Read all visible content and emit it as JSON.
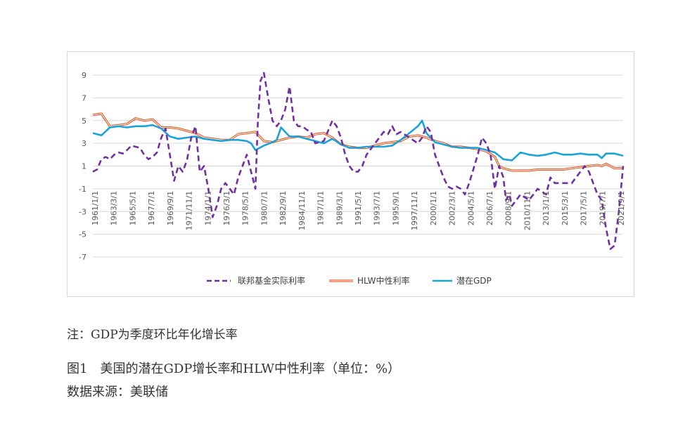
{
  "chart_data": {
    "type": "line",
    "title": "",
    "xlabel": "",
    "ylabel": "",
    "ylim": [
      -7,
      9
    ],
    "y_ticks": [
      "9",
      "7",
      "5",
      "3",
      "1",
      "-1",
      "-3",
      "-5",
      "-7"
    ],
    "x_tick_labels": [
      "1961/1/1",
      "1963/3/1",
      "1965/5/1",
      "1967/7/1",
      "1969/9/1",
      "1971/11/1",
      "1974/1/1",
      "1976/3/1",
      "1978/5/1",
      "1980/7/1",
      "1982/9/1",
      "1984/11/1",
      "1987/1/1",
      "1989/3/1",
      "1991/5/1",
      "1993/7/1",
      "1995/9/1",
      "1997/11/1",
      "2000/1/1",
      "2002/3/1",
      "2004/5/1",
      "2006/7/1",
      "2008/9/1",
      "2010/11/1",
      "2013/1/1",
      "2015/3/1",
      "2017/5/1",
      "2019/7/1",
      "2021/9/1"
    ],
    "x_range": [
      1961.0,
      2023.0
    ],
    "legend_position": "bottom",
    "series": [
      {
        "name": "联邦基金实际利率",
        "color": "#7030a0",
        "style": "dashed",
        "x": [
          1961.0,
          1961.5,
          1962.0,
          1962.5,
          1963.0,
          1963.5,
          1964.0,
          1964.5,
          1965.0,
          1965.5,
          1966.0,
          1966.5,
          1967.0,
          1967.5,
          1968.0,
          1968.5,
          1969.0,
          1969.5,
          1970.0,
          1970.5,
          1971.0,
          1971.5,
          1972.0,
          1972.5,
          1973.0,
          1973.5,
          1974.0,
          1974.5,
          1975.0,
          1975.5,
          1976.0,
          1976.5,
          1977.0,
          1977.5,
          1978.0,
          1978.5,
          1979.0,
          1979.5,
          1980.0,
          1980.3,
          1980.6,
          1981.0,
          1981.5,
          1982.0,
          1982.5,
          1983.0,
          1983.5,
          1984.0,
          1984.5,
          1985.0,
          1985.5,
          1986.0,
          1986.5,
          1987.0,
          1988.0,
          1989.0,
          1989.5,
          1990.0,
          1990.5,
          1991.0,
          1991.5,
          1992.0,
          1992.5,
          1993.0,
          1994.0,
          1995.0,
          1995.5,
          1996.0,
          1996.5,
          1997.0,
          1998.0,
          1999.0,
          1999.5,
          2000.0,
          2000.5,
          2001.0,
          2001.5,
          2002.0,
          2002.5,
          2003.0,
          2003.5,
          2004.0,
          2004.5,
          2005.0,
          2006.0,
          2006.5,
          2007.0,
          2007.5,
          2008.0,
          2008.5,
          2009.0,
          2009.3,
          2009.7,
          2010.0,
          2011.0,
          2012.0,
          2013.0,
          2014.0,
          2014.5,
          2015.0,
          2016.0,
          2017.0,
          2017.5,
          2018.0,
          2018.5,
          2019.0,
          2019.5,
          2020.0,
          2020.5,
          2021.0,
          2021.5,
          2022.0,
          2022.5,
          2023.0
        ],
        "values": [
          0.5,
          0.7,
          1.6,
          1.8,
          1.6,
          2.0,
          2.2,
          2.1,
          2.4,
          2.8,
          2.7,
          2.6,
          2.0,
          1.6,
          1.8,
          2.2,
          3.5,
          4.3,
          2.0,
          -0.3,
          1.0,
          0.5,
          1.5,
          3.5,
          4.5,
          0.5,
          1.0,
          -1.0,
          -3.5,
          -2.5,
          -1.0,
          -0.5,
          -1.0,
          -1.5,
          0.0,
          1.0,
          2.0,
          0.5,
          -1.0,
          5.0,
          8.5,
          9.2,
          7.0,
          5.0,
          4.5,
          5.0,
          6.0,
          8.0,
          5.0,
          4.5,
          4.5,
          4.2,
          4.0,
          3.0,
          3.2,
          5.0,
          4.5,
          3.5,
          2.0,
          1.0,
          0.5,
          0.5,
          1.0,
          2.0,
          3.0,
          4.0,
          3.8,
          4.5,
          3.8,
          4.0,
          3.5,
          3.0,
          3.5,
          4.5,
          4.0,
          2.0,
          1.0,
          0.0,
          -0.8,
          -1.0,
          -0.8,
          -1.0,
          -1.5,
          -0.5,
          2.0,
          3.5,
          3.0,
          2.0,
          -1.0,
          1.0,
          0.0,
          -2.0,
          -1.5,
          -2.5,
          -1.5,
          -2.0,
          -1.0,
          -1.5,
          0.0,
          -0.5,
          -0.5,
          -0.5,
          0.0,
          0.5,
          1.0,
          0.5,
          -0.5,
          -1.5,
          -2.0,
          -4.5,
          -6.3,
          -6.0,
          -3.0,
          1.0
        ]
      },
      {
        "name": "HLW中性利率",
        "color": "#e8561c",
        "style": "double",
        "x": [
          1961.0,
          1962.0,
          1963.0,
          1964.0,
          1965.0,
          1966.0,
          1967.0,
          1968.0,
          1969.0,
          1970.0,
          1971.0,
          1972.0,
          1973.0,
          1974.0,
          1975.0,
          1976.0,
          1977.0,
          1978.0,
          1979.0,
          1980.0,
          1981.0,
          1982.0,
          1983.0,
          1984.0,
          1985.0,
          1986.0,
          1987.0,
          1988.0,
          1989.0,
          1990.0,
          1991.0,
          1992.0,
          1993.0,
          1994.0,
          1995.0,
          1996.0,
          1997.0,
          1998.0,
          1999.0,
          2000.0,
          2001.0,
          2002.0,
          2003.0,
          2004.0,
          2005.0,
          2006.0,
          2007.0,
          2008.0,
          2008.5,
          2009.0,
          2010.0,
          2011.0,
          2012.0,
          2013.0,
          2014.0,
          2015.0,
          2016.0,
          2017.0,
          2018.0,
          2019.0,
          2020.0,
          2020.5,
          2021.0,
          2022.0,
          2023.0
        ],
        "values": [
          5.5,
          5.6,
          4.5,
          4.6,
          4.7,
          5.2,
          5.0,
          5.1,
          4.4,
          4.4,
          4.3,
          4.1,
          3.9,
          3.5,
          3.4,
          3.3,
          3.3,
          3.8,
          3.9,
          4.0,
          3.2,
          3.1,
          3.3,
          3.5,
          3.6,
          3.5,
          3.8,
          3.9,
          3.5,
          2.9,
          2.7,
          2.6,
          2.6,
          2.8,
          3.0,
          3.1,
          3.2,
          3.6,
          3.7,
          3.5,
          3.2,
          3.0,
          2.7,
          2.7,
          2.6,
          2.5,
          2.3,
          1.8,
          1.0,
          0.8,
          0.6,
          0.6,
          0.6,
          0.7,
          0.7,
          0.7,
          0.7,
          0.8,
          0.9,
          1.0,
          1.1,
          1.0,
          1.2,
          0.8,
          0.8
        ]
      },
      {
        "name": "潜在GDP",
        "color": "#1aa3d9",
        "style": "solid",
        "x": [
          1961.0,
          1962.0,
          1963.0,
          1964.0,
          1965.0,
          1966.0,
          1967.0,
          1968.0,
          1969.0,
          1970.0,
          1971.0,
          1972.0,
          1973.0,
          1974.0,
          1975.0,
          1976.0,
          1977.0,
          1978.0,
          1979.0,
          1979.5,
          1980.0,
          1981.0,
          1982.0,
          1982.5,
          1983.0,
          1984.0,
          1985.0,
          1986.0,
          1987.0,
          1988.0,
          1989.0,
          1990.0,
          1991.0,
          1992.0,
          1993.0,
          1994.0,
          1995.0,
          1996.0,
          1997.0,
          1998.0,
          1999.0,
          1999.5,
          2000.0,
          2001.0,
          2002.0,
          2003.0,
          2004.0,
          2005.0,
          2006.0,
          2007.0,
          2008.0,
          2009.0,
          2010.0,
          2011.0,
          2012.0,
          2013.0,
          2014.0,
          2015.0,
          2016.0,
          2017.0,
          2018.0,
          2019.0,
          2020.0,
          2020.5,
          2021.0,
          2022.0,
          2023.0
        ],
        "values": [
          3.9,
          3.7,
          4.4,
          4.5,
          4.4,
          4.5,
          4.5,
          4.6,
          4.3,
          3.6,
          3.4,
          3.5,
          3.6,
          3.4,
          3.3,
          3.2,
          3.3,
          3.3,
          3.2,
          3.0,
          2.4,
          2.8,
          3.1,
          3.3,
          4.4,
          3.6,
          3.6,
          3.4,
          3.2,
          3.0,
          3.4,
          2.9,
          2.6,
          2.6,
          2.7,
          2.7,
          2.7,
          2.8,
          3.3,
          3.9,
          4.5,
          5.0,
          3.9,
          3.1,
          2.9,
          2.7,
          2.6,
          2.6,
          2.6,
          2.4,
          2.2,
          1.6,
          1.5,
          2.2,
          2.0,
          1.9,
          2.0,
          2.2,
          2.0,
          2.0,
          2.1,
          2.0,
          2.0,
          1.7,
          2.1,
          2.1,
          1.9
        ]
      }
    ]
  },
  "captions": {
    "note": "注：GDP为季度环比年化增长率",
    "figure_title": "图1　美国的潜在GDP增长率和HLW中性利率（单位：%）",
    "source": "数据来源：美联储"
  }
}
